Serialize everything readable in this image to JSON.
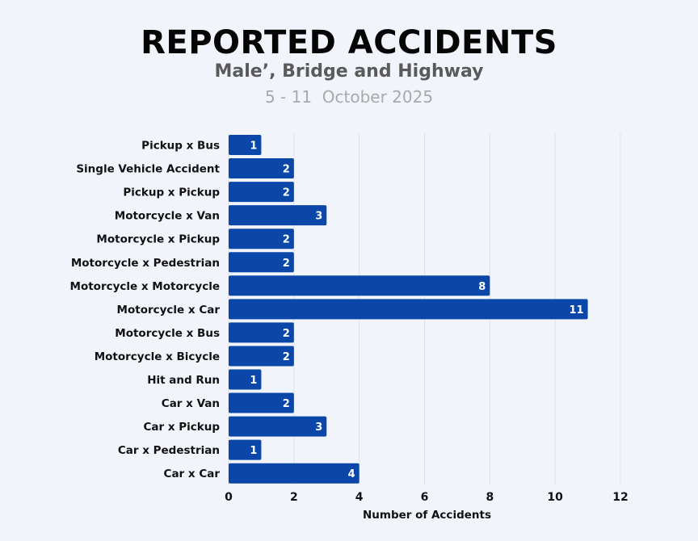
{
  "header": {
    "title": "REPORTED ACCIDENTS",
    "subtitle": "Male’, Bridge and Highway",
    "date": "5 - 11  October 2025"
  },
  "colors": {
    "bar": "#0b47a8",
    "grid": "#dde1ea",
    "background": "#f1f4fb"
  },
  "chart_data": {
    "type": "bar",
    "orientation": "horizontal",
    "categories": [
      "Pickup x Bus",
      "Single Vehicle Accident",
      "Pickup x Pickup",
      "Motorcycle x Van",
      "Motorcycle x Pickup",
      "Motorcycle x Pedestrian",
      "Motorcycle x Motorcycle",
      "Motorcycle x Car",
      "Motorcycle x Bus",
      "Motorcycle x Bicycle",
      "Hit and Run",
      "Car x Van",
      "Car x Pickup",
      "Car x Pedestrian",
      "Car x Car"
    ],
    "values": [
      1,
      2,
      2,
      3,
      2,
      2,
      8,
      11,
      2,
      2,
      1,
      2,
      3,
      1,
      4
    ],
    "xlabel": "Number of Accidents",
    "ylabel": "",
    "xlim": [
      0,
      12
    ],
    "xticks": [
      0,
      2,
      4,
      6,
      8,
      10,
      12
    ],
    "data_labels": true,
    "grid": "vertical"
  }
}
